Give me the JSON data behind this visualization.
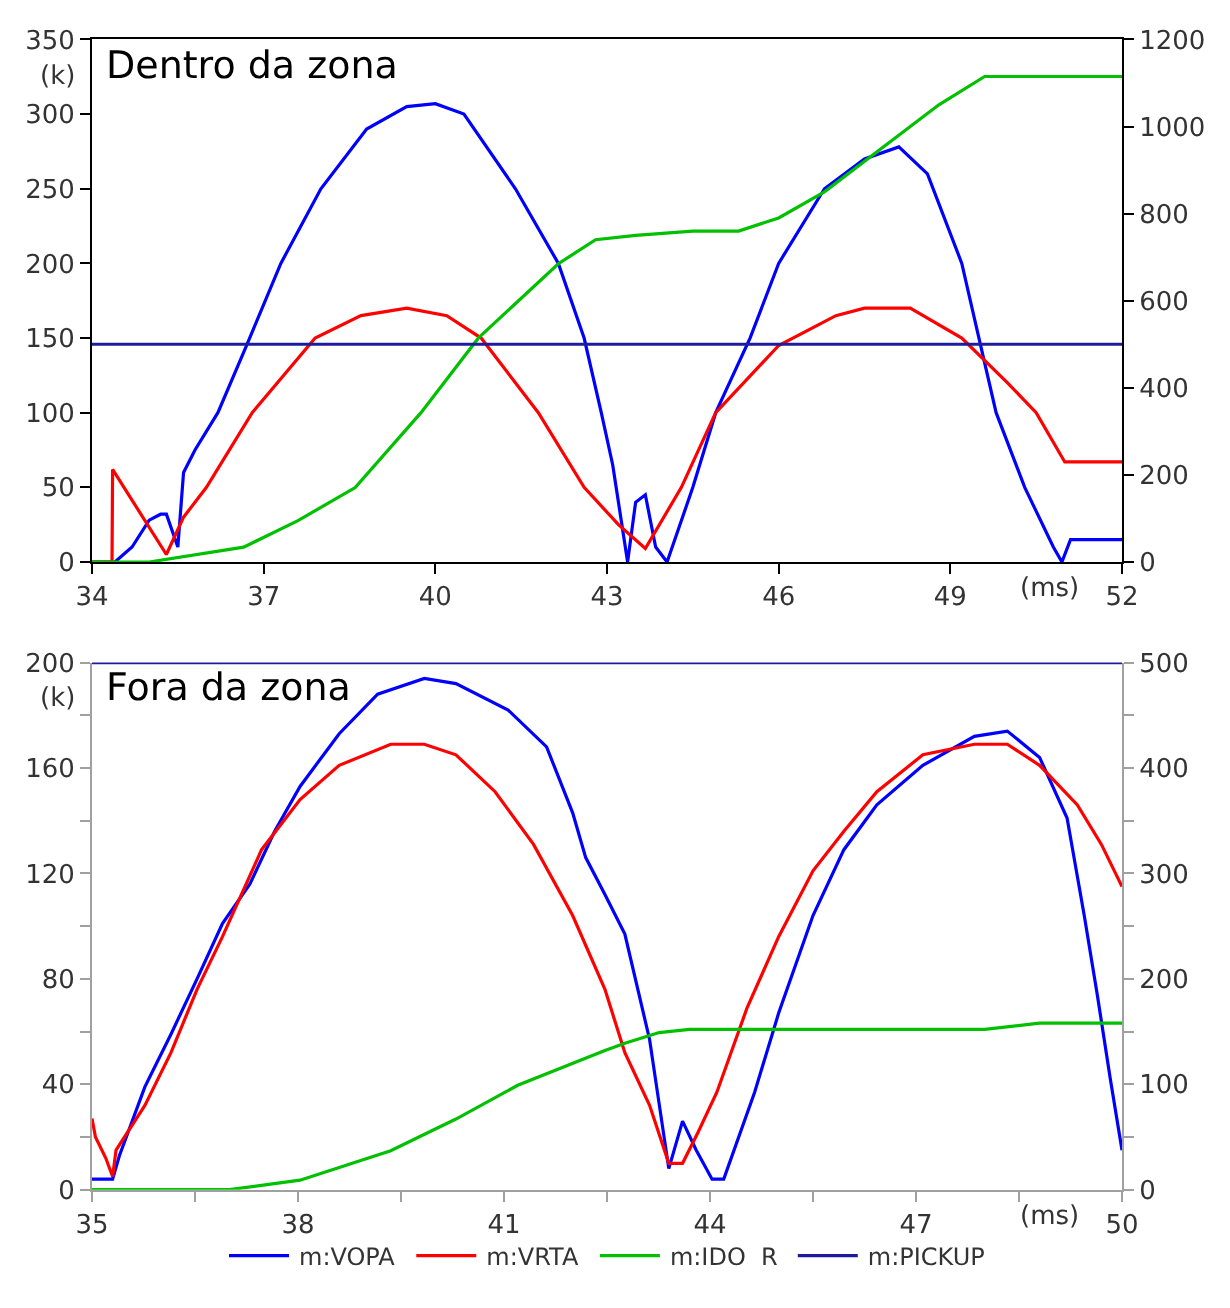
{
  "chart_data": [
    {
      "type": "line",
      "title": "Dentro da zona",
      "xlabel": "(ms)",
      "ylabel": "(k)",
      "xlim": [
        34,
        52
      ],
      "xticks": [
        34,
        37,
        40,
        43,
        46,
        49,
        52
      ],
      "ylim": [
        0,
        350
      ],
      "yticks": [
        0,
        50,
        100,
        150,
        200,
        250,
        300,
        350
      ],
      "y2lim": [
        0,
        1200
      ],
      "y2ticks": [
        0,
        200,
        400,
        600,
        800,
        1000,
        1200
      ],
      "series": [
        {
          "color": "#0000ff",
          "x": [
            34,
            34.4,
            34.7,
            35.0,
            35.2,
            35.3,
            35.5,
            35.6,
            35.8,
            36.2,
            36.7,
            37.3,
            38.0,
            38.8,
            39.5,
            40.0,
            40.5,
            41.4,
            42.15,
            42.6,
            42.9,
            43.1,
            43.36,
            43.5,
            43.67,
            43.85,
            44.05,
            44.5,
            44.9,
            45.5,
            46.0,
            46.8,
            47.5,
            48.1,
            48.6,
            49.2,
            49.5,
            49.8,
            50.3,
            50.8,
            50.95,
            51.1,
            52
          ],
          "values": [
            0,
            0,
            10,
            28,
            32,
            32,
            10,
            60,
            75,
            100,
            145,
            200,
            250,
            290,
            305,
            307,
            300,
            250,
            200,
            150,
            100,
            65,
            0,
            40,
            45,
            10,
            0,
            50,
            100,
            150,
            200,
            250,
            270,
            278,
            260,
            200,
            150,
            100,
            50,
            10,
            0,
            15,
            15
          ]
        },
        {
          "color": "#ff0000",
          "x": [
            34,
            34.35,
            34.36,
            35.3,
            35.6,
            36.0,
            36.8,
            37.9,
            38.7,
            39.5,
            40.2,
            40.8,
            41.8,
            42.6,
            43.2,
            43.67,
            44.3,
            44.9,
            46.0,
            47.0,
            47.5,
            48.3,
            49.2,
            50.0,
            50.5,
            51.0,
            52
          ],
          "values": [
            0,
            0,
            62,
            5,
            30,
            50,
            100,
            150,
            165,
            170,
            165,
            150,
            100,
            50,
            25,
            9,
            50,
            100,
            145,
            165,
            170,
            170,
            150,
            120,
            100,
            67,
            67
          ]
        },
        {
          "color": "#00c000",
          "axis": "y2",
          "x": [
            34,
            35.0,
            36.65,
            37.6,
            38.6,
            39.75,
            40.75,
            42.15,
            42.8,
            43.5,
            44.5,
            45.3,
            46.0,
            46.8,
            47.8,
            48.8,
            49.6,
            52
          ],
          "values": [
            0,
            0,
            34,
            95,
            171,
            343,
            514,
            685,
            740,
            750,
            760,
            760,
            790,
            850,
            950,
            1050,
            1115,
            1115
          ]
        },
        {
          "color": "#1c1c9c",
          "axis": "y2",
          "x": [
            34,
            52
          ],
          "values": [
            500,
            500
          ]
        }
      ]
    },
    {
      "type": "line",
      "title": "Fora da zona",
      "xlabel": "(ms)",
      "ylabel": "(k)",
      "legend": "bottom",
      "xlim": [
        35,
        50
      ],
      "xticks": [
        35,
        {
          "value": 36.5,
          "label": null
        },
        38,
        {
          "value": 39.5,
          "label": null
        },
        41,
        {
          "value": 42.5,
          "label": null
        },
        44,
        {
          "value": 45.5,
          "label": null
        },
        47,
        {
          "value": 48.5,
          "label": null
        },
        50
      ],
      "ylim": [
        0,
        200
      ],
      "yticks": [
        0,
        {
          "value": 20,
          "label": null
        },
        40,
        {
          "value": 60,
          "label": null
        },
        80,
        {
          "value": 100,
          "label": null
        },
        120,
        {
          "value": 140,
          "label": null
        },
        160,
        {
          "value": 180,
          "label": null
        },
        200
      ],
      "y2lim": [
        0,
        500
      ],
      "y2ticks": [
        0,
        {
          "value": 50,
          "label": null
        },
        100,
        {
          "value": 150,
          "label": null
        },
        200,
        {
          "value": 250,
          "label": null
        },
        300,
        {
          "value": 350,
          "label": null
        },
        400,
        {
          "value": 450,
          "label": null
        },
        500
      ],
      "series": [
        {
          "name": "m:VOPA",
          "color": "#0000ff",
          "x": [
            35.0,
            35.3,
            35.4,
            35.77,
            36.15,
            36.53,
            36.9,
            37.3,
            37.66,
            38.03,
            38.6,
            39.16,
            39.84,
            40.3,
            41.06,
            41.62,
            42.0,
            42.19,
            42.47,
            42.76,
            43.12,
            43.4,
            43.6,
            43.8,
            44.03,
            44.2,
            44.65,
            45.0,
            45.5,
            45.95,
            46.43,
            47.1,
            47.85,
            48.33,
            48.8,
            49.2,
            49.45,
            49.64,
            49.83,
            50
          ],
          "values": [
            4,
            4,
            13,
            39,
            59,
            80,
            101,
            116,
            136,
            153,
            173,
            188,
            194,
            192,
            182,
            168,
            143,
            126,
            112,
            97,
            57,
            8,
            26,
            15,
            4,
            4,
            37,
            67,
            104,
            129,
            146,
            161,
            172,
            174,
            164,
            141,
            104,
            74,
            42,
            15
          ]
        },
        {
          "name": "m:VRTA",
          "color": "#ff0000",
          "x": [
            35.0,
            35.05,
            35.2,
            35.3,
            35.35,
            35.77,
            36.15,
            36.53,
            36.9,
            37.47,
            38.03,
            38.6,
            39.35,
            39.84,
            40.3,
            40.87,
            41.43,
            42.0,
            42.47,
            42.76,
            43.12,
            43.4,
            43.6,
            43.83,
            44.1,
            44.54,
            45.0,
            45.5,
            45.95,
            46.43,
            47.1,
            47.85,
            48.33,
            48.8,
            49.35,
            49.7,
            50
          ],
          "values": [
            27,
            20,
            12,
            5,
            15,
            32,
            52,
            76,
            96,
            129,
            148,
            161,
            169,
            169,
            165,
            151,
            131,
            104,
            76,
            52,
            32,
            10,
            10,
            22,
            37,
            69,
            96,
            121,
            136,
            151,
            165,
            169,
            169,
            161,
            146,
            131,
            115
          ]
        },
        {
          "name": "m:IDO  R",
          "color": "#00c000",
          "axis": "y2",
          "x": [
            35,
            37.0,
            38.03,
            39.35,
            40.3,
            41.2,
            42.47,
            42.76,
            43.26,
            43.7,
            48.0,
            48.8,
            50
          ],
          "values": [
            0,
            0,
            9,
            37,
            67,
            99,
            132,
            139,
            149,
            152,
            152,
            158,
            158
          ]
        },
        {
          "name": "m:PICKUP",
          "color": "#1c1c9c",
          "axis": "y2",
          "x": [
            35,
            50
          ],
          "values": [
            500,
            500
          ]
        }
      ]
    }
  ]
}
